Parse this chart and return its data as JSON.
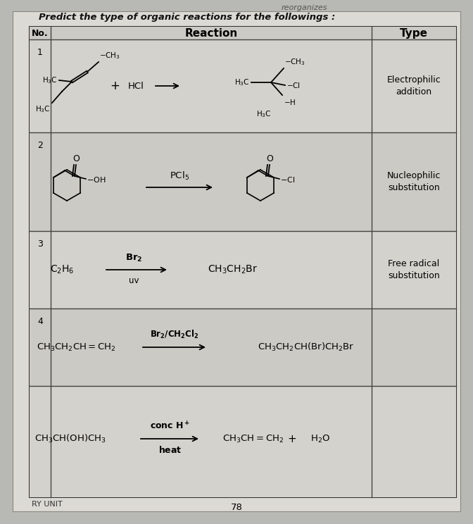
{
  "title": "Predict the type of organic reactions for the followings :",
  "header_reaction": "Reaction",
  "header_type": "Type",
  "col_no_label": "No.",
  "page_number": "78",
  "footer_text": "RY UNIT",
  "bg_color": "#b8b8b4",
  "page_color": "#dcdad4",
  "table_header_bg": "#c8c6c0",
  "row_colors": [
    "#d8d6d0",
    "#d0cec8"
  ],
  "types": [
    "Electrophilic\naddition",
    "Nucleophilic\nsubstitution",
    "Free radical\nsubstitution",
    "",
    ""
  ],
  "row_nos": [
    "1",
    "2",
    "3",
    "4",
    ""
  ],
  "title_color": "#111111",
  "text_color": "#111111"
}
